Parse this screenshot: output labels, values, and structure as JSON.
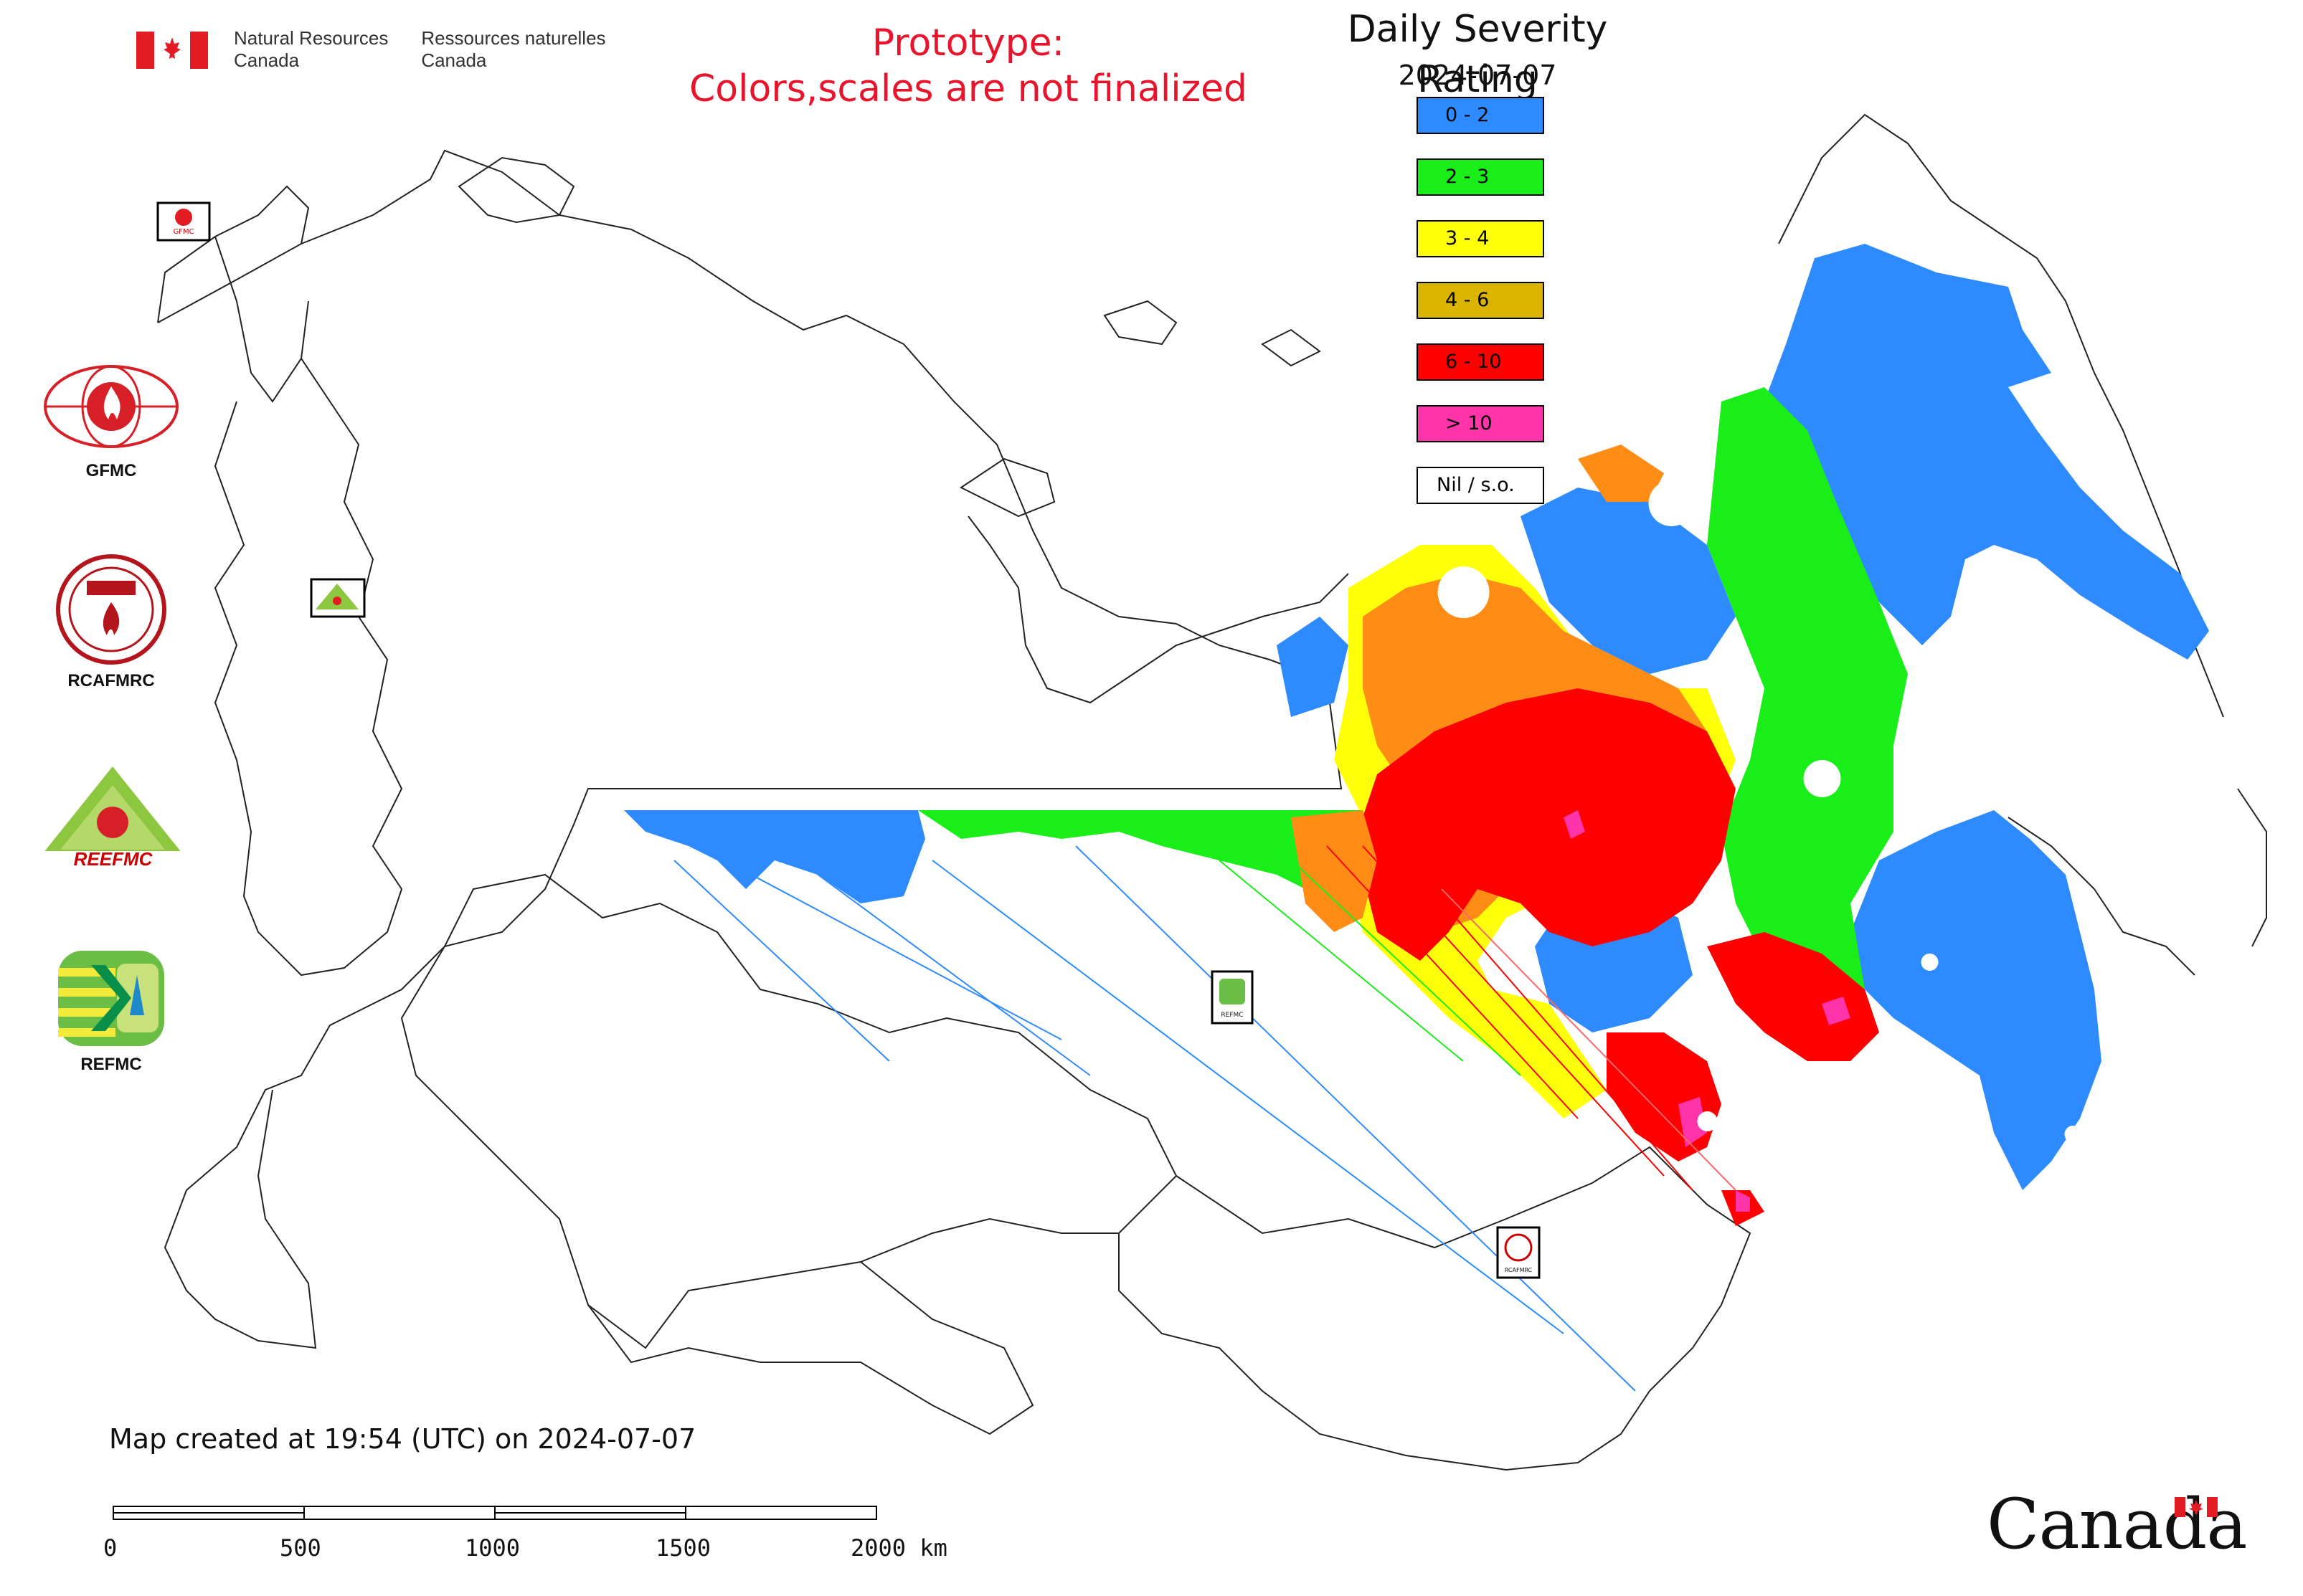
{
  "government": {
    "english": [
      "Natural Resources",
      "Canada"
    ],
    "french": [
      "Ressources naturelles",
      "Canada"
    ]
  },
  "warning": {
    "line1": "Prototype:",
    "line2": "Colors,scales are not finalized"
  },
  "legend": {
    "title": "Daily Severity Rating",
    "date": "2024-07-07",
    "items": [
      {
        "label": "0 - 2",
        "color": "#2e8bff"
      },
      {
        "label": "2 - 3",
        "color": "#19ee19"
      },
      {
        "label": "3 - 4",
        "color": "#ffff0a"
      },
      {
        "label": "4 - 6",
        "color": "#dbb400"
      },
      {
        "label": "6 - 10",
        "color": "#ff0000"
      },
      {
        "label": "> 10",
        "color": "#ff33aa"
      },
      {
        "label": "Nil / s.o.",
        "color": "#ffffff"
      }
    ]
  },
  "organizations": [
    {
      "name": "GFMC",
      "icon": "gfmc-logo"
    },
    {
      "name": "RCAFMRC",
      "icon": "rcafmrc-logo"
    },
    {
      "name": "REEFMC",
      "icon": "reefmc-logo"
    },
    {
      "name": "REFMC",
      "icon": "refmc-logo"
    }
  ],
  "map_labels": {
    "gfmc_small": "GFMC",
    "reefmc_small": "REEFMC",
    "refmc_small": "REFMC",
    "rcafmrc_small": "RCAFMRC"
  },
  "footer": {
    "created": "Map created at 19:54 (UTC) on 2024-07-07",
    "scale_ticks": [
      "0",
      "500",
      "1000",
      "1500",
      "2000 km"
    ],
    "wordmark": "Canada"
  },
  "colors": {
    "accent_red": "#e8142b",
    "orange": "#ff8c14"
  }
}
